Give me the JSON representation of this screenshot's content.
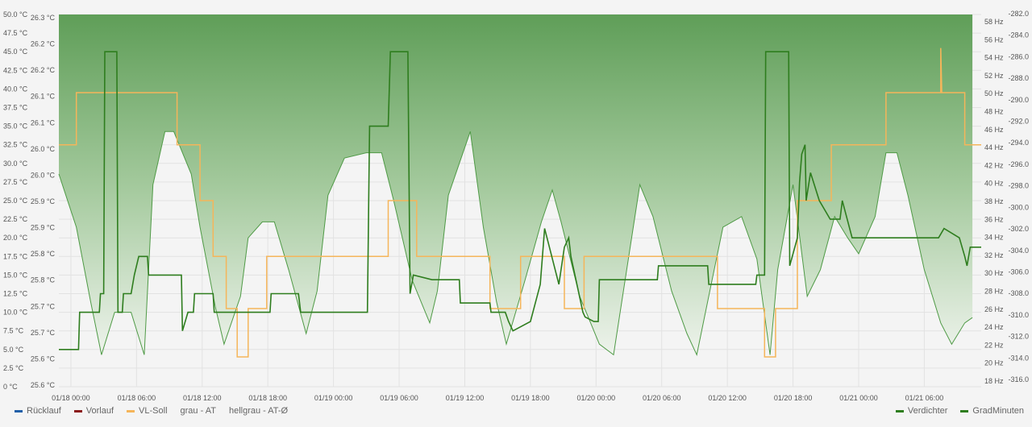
{
  "chart_data": {
    "type": "line",
    "grid": true,
    "legend_placement": "bottom",
    "x_ticks": [
      "01/18 00:00",
      "01/18 06:00",
      "01/18 12:00",
      "01/18 18:00",
      "01/19 00:00",
      "01/19 06:00",
      "01/19 12:00",
      "01/19 18:00",
      "01/20 00:00",
      "01/20 06:00",
      "01/20 12:00",
      "01/20 18:00",
      "01/21 00:00",
      "01/21 06:00"
    ],
    "x_range_hours": [
      -1.1,
      83.2
    ],
    "axes": {
      "left_outer": {
        "unit": "°C",
        "range": [
          0,
          50
        ],
        "ticks": [
          "50.0 °C",
          "47.5 °C",
          "45.0 °C",
          "42.5 °C",
          "40.0 °C",
          "37.5 °C",
          "35.0 °C",
          "32.5 °C",
          "30.0 °C",
          "27.5 °C",
          "25.0 °C",
          "22.5 °C",
          "20.0 °C",
          "17.5 °C",
          "15.0 °C",
          "12.5 °C",
          "10.0 °C",
          "7.5 °C",
          "5.0 °C",
          "2.5 °C",
          "0 °C"
        ]
      },
      "left_inner": {
        "unit": "°C",
        "range": [
          25.6,
          26.3
        ],
        "ticks": [
          "26.3 °C",
          "26.2 °C",
          "26.2 °C",
          "26.1 °C",
          "26.1 °C",
          "26.0 °C",
          "26.0 °C",
          "25.9 °C",
          "25.9 °C",
          "25.8 °C",
          "25.8 °C",
          "25.7 °C",
          "25.7 °C",
          "25.6 °C",
          "25.6 °C"
        ]
      },
      "right_inner": {
        "unit": "Hz",
        "range": [
          18,
          58
        ],
        "ticks": [
          "58 Hz",
          "56 Hz",
          "54 Hz",
          "52 Hz",
          "50 Hz",
          "48 Hz",
          "46 Hz",
          "44 Hz",
          "42 Hz",
          "40 Hz",
          "38 Hz",
          "36 Hz",
          "34 Hz",
          "32 Hz",
          "30 Hz",
          "28 Hz",
          "26 Hz",
          "24 Hz",
          "22 Hz",
          "20 Hz",
          "18 Hz"
        ]
      },
      "right_outer": {
        "range": [
          -316,
          -282
        ],
        "ticks": [
          "-282.0",
          "-284.0",
          "-286.0",
          "-288.0",
          "-290.0",
          "-292.0",
          "-294.0",
          "-296.0",
          "-298.0",
          "-300.0",
          "-302.0",
          "-304.0",
          "-306.0",
          "-308.0",
          "-310.0",
          "-312.0",
          "-314.0",
          "-316.0"
        ]
      }
    },
    "series": [
      {
        "name": "Rücklauf",
        "color": "#1f5fa8",
        "values": []
      },
      {
        "name": "Vorlauf",
        "color": "#8b1a1a",
        "values": []
      },
      {
        "name": "VL-Soll",
        "color": "#f5b55a",
        "axis": "left_outer",
        "points": [
          [
            -1.1,
            32.5
          ],
          [
            0.5,
            32.5
          ],
          [
            0.5,
            39.5
          ],
          [
            9.7,
            39.5
          ],
          [
            9.7,
            32.5
          ],
          [
            11.8,
            32.5
          ],
          [
            11.8,
            25
          ],
          [
            13,
            25
          ],
          [
            13,
            17.5
          ],
          [
            14.2,
            17.5
          ],
          [
            14.2,
            10.5
          ],
          [
            15.2,
            10.5
          ],
          [
            15.2,
            4
          ],
          [
            16.2,
            4
          ],
          [
            16.2,
            10.5
          ],
          [
            17.9,
            10.5
          ],
          [
            17.9,
            17.5
          ],
          [
            29,
            17.5
          ],
          [
            29,
            25
          ],
          [
            31.6,
            25
          ],
          [
            31.6,
            17.5
          ],
          [
            38.3,
            17.5
          ],
          [
            38.3,
            10.5
          ],
          [
            41.1,
            10.5
          ],
          [
            41.1,
            17.5
          ],
          [
            45.1,
            17.5
          ],
          [
            45.1,
            10.5
          ],
          [
            46.9,
            10.5
          ],
          [
            46.9,
            17.5
          ],
          [
            59.1,
            17.5
          ],
          [
            59.1,
            10.5
          ],
          [
            63.4,
            10.5
          ],
          [
            63.4,
            4
          ],
          [
            64.4,
            4
          ],
          [
            64.4,
            10.5
          ],
          [
            66.4,
            10.5
          ],
          [
            66.4,
            25
          ],
          [
            69.5,
            25
          ],
          [
            69.5,
            32.5
          ],
          [
            74.5,
            32.5
          ],
          [
            74.5,
            39.5
          ],
          [
            79.5,
            39.5
          ],
          [
            79.5,
            45.5
          ],
          [
            79.6,
            39.5
          ],
          [
            81.7,
            39.5
          ],
          [
            81.7,
            32.5
          ],
          [
            83.2,
            32.5
          ]
        ]
      },
      {
        "name": "grau - AT",
        "axis": "left_inner",
        "points": [
          [
            -1.1,
            26.0
          ],
          [
            0.5,
            25.9
          ],
          [
            1.8,
            25.76
          ],
          [
            2.8,
            25.66
          ],
          [
            4,
            25.74
          ],
          [
            5.5,
            25.74
          ],
          [
            6.7,
            25.66
          ],
          [
            7.5,
            25.98
          ],
          [
            8.6,
            26.08
          ],
          [
            9.4,
            26.08
          ],
          [
            11,
            26.0
          ],
          [
            11.8,
            25.9
          ],
          [
            13.2,
            25.75
          ],
          [
            14,
            25.68
          ],
          [
            15.5,
            25.77
          ],
          [
            16.2,
            25.88
          ],
          [
            17.5,
            25.91
          ],
          [
            18.6,
            25.91
          ],
          [
            19.9,
            25.82
          ],
          [
            21.5,
            25.7
          ],
          [
            22.5,
            25.78
          ],
          [
            23.5,
            25.96
          ],
          [
            25,
            26.03
          ],
          [
            27,
            26.04
          ],
          [
            28.4,
            26.04
          ],
          [
            29.5,
            25.95
          ],
          [
            31.2,
            25.8
          ],
          [
            32.8,
            25.72
          ],
          [
            33.5,
            25.78
          ],
          [
            34.5,
            25.96
          ],
          [
            36.5,
            26.08
          ],
          [
            37.7,
            25.9
          ],
          [
            38.9,
            25.76
          ],
          [
            39.8,
            25.68
          ],
          [
            41.5,
            25.8
          ],
          [
            43,
            25.91
          ],
          [
            44,
            25.97
          ],
          [
            44.8,
            25.91
          ],
          [
            46.5,
            25.77
          ],
          [
            48.3,
            25.68
          ],
          [
            49.6,
            25.66
          ],
          [
            50.8,
            25.82
          ],
          [
            52,
            25.98
          ],
          [
            53.2,
            25.92
          ],
          [
            54.9,
            25.78
          ],
          [
            56.3,
            25.7
          ],
          [
            57.2,
            25.66
          ],
          [
            58.4,
            25.78
          ],
          [
            59.6,
            25.9
          ],
          [
            61.3,
            25.92
          ],
          [
            62.7,
            25.84
          ],
          [
            63.9,
            25.66
          ],
          [
            64.6,
            25.82
          ],
          [
            66,
            25.98
          ],
          [
            67.3,
            25.77
          ],
          [
            68.5,
            25.82
          ],
          [
            69.8,
            25.92
          ],
          [
            71,
            25.88
          ],
          [
            72,
            25.85
          ],
          [
            73.5,
            25.92
          ],
          [
            74.5,
            26.04
          ],
          [
            75.5,
            26.04
          ],
          [
            76.5,
            25.96
          ],
          [
            78,
            25.82
          ],
          [
            79.5,
            25.72
          ],
          [
            80.5,
            25.68
          ],
          [
            81.7,
            25.72
          ],
          [
            82.4,
            25.73
          ]
        ]
      },
      {
        "name": "hellgrau - AT-Ø",
        "values": []
      },
      {
        "name": "Verdichter",
        "color": "#2e7d1e",
        "axis": "right_inner",
        "points": [
          [
            -1.1,
            22
          ],
          [
            0.7,
            22
          ],
          [
            0.8,
            26
          ],
          [
            1.5,
            26
          ],
          [
            2.6,
            26
          ],
          [
            2.7,
            28
          ],
          [
            3,
            28
          ],
          [
            3.1,
            54
          ],
          [
            4.2,
            54
          ],
          [
            4.3,
            26
          ],
          [
            4.7,
            26
          ],
          [
            4.8,
            28
          ],
          [
            5.5,
            28
          ],
          [
            5.8,
            30
          ],
          [
            6.2,
            32
          ],
          [
            7,
            32
          ],
          [
            7.1,
            30
          ],
          [
            8.5,
            30
          ],
          [
            9.2,
            30
          ],
          [
            10.1,
            30
          ],
          [
            10.2,
            24
          ],
          [
            10.7,
            26
          ],
          [
            11.2,
            26
          ],
          [
            11.3,
            28
          ],
          [
            13,
            28
          ],
          [
            13.1,
            26
          ],
          [
            15,
            26
          ],
          [
            15.2,
            26
          ],
          [
            18.2,
            26
          ],
          [
            18.3,
            28
          ],
          [
            18.8,
            28
          ],
          [
            20.8,
            28
          ],
          [
            21,
            26
          ],
          [
            26,
            26
          ],
          [
            27.1,
            26
          ],
          [
            27.3,
            46
          ],
          [
            29,
            46
          ],
          [
            29.2,
            54
          ],
          [
            30.8,
            54
          ],
          [
            31,
            28
          ],
          [
            31.3,
            30
          ],
          [
            33,
            29.5
          ],
          [
            35.5,
            29.5
          ],
          [
            35.6,
            27
          ],
          [
            38.3,
            27
          ],
          [
            38.4,
            26
          ],
          [
            39.7,
            26
          ],
          [
            40,
            25
          ],
          [
            40.4,
            24
          ],
          [
            42,
            25
          ],
          [
            42.9,
            29
          ],
          [
            43.3,
            35
          ],
          [
            44.6,
            29
          ],
          [
            45.1,
            33
          ],
          [
            45.5,
            34
          ],
          [
            45.7,
            32
          ],
          [
            46.8,
            26
          ],
          [
            47,
            25.5
          ],
          [
            47.8,
            25
          ],
          [
            48.2,
            25
          ],
          [
            48.3,
            29.5
          ],
          [
            53.6,
            29.5
          ],
          [
            53.7,
            31
          ],
          [
            58.2,
            31
          ],
          [
            58.3,
            29
          ],
          [
            62.6,
            29
          ],
          [
            62.7,
            30
          ],
          [
            63.4,
            30
          ],
          [
            63.5,
            54
          ],
          [
            65.6,
            54
          ],
          [
            65.7,
            31
          ],
          [
            66.4,
            34
          ],
          [
            66.6,
            40
          ],
          [
            66.8,
            43
          ],
          [
            67.1,
            44
          ],
          [
            67.2,
            38
          ],
          [
            67.6,
            41
          ],
          [
            68.4,
            38
          ],
          [
            69.4,
            36
          ],
          [
            70.3,
            36
          ],
          [
            70.5,
            38
          ],
          [
            71.4,
            34
          ],
          [
            78.9,
            34
          ],
          [
            79.3,
            34
          ],
          [
            79.8,
            35
          ],
          [
            81.2,
            34
          ],
          [
            81.7,
            32
          ],
          [
            81.9,
            31
          ],
          [
            82.2,
            33
          ],
          [
            83.2,
            33
          ]
        ]
      },
      {
        "name": "GradMinuten",
        "axis": "right_outer",
        "values": []
      }
    ],
    "legend_left": [
      {
        "label": "Rücklauf",
        "color": "#1f5fa8"
      },
      {
        "label": "Vorlauf",
        "color": "#8b1a1a"
      },
      {
        "label": "VL-Soll",
        "color": "#f5b55a"
      },
      {
        "label": "grau - AT",
        "color": ""
      },
      {
        "label": "hellgrau - AT-Ø",
        "color": ""
      }
    ],
    "legend_right": [
      {
        "label": "Verdichter",
        "color": "#2e7d1e"
      },
      {
        "label": "GradMinuten",
        "color": "#2e7d1e"
      }
    ],
    "colors": {
      "fill_top": "#5f9e58",
      "fill_mid": "#a3c99c",
      "fill_bottom": "#eef3ec",
      "line_dark": "#2e7d1e",
      "line_thin": "#4f9a46",
      "orange": "#f5b55a"
    }
  }
}
